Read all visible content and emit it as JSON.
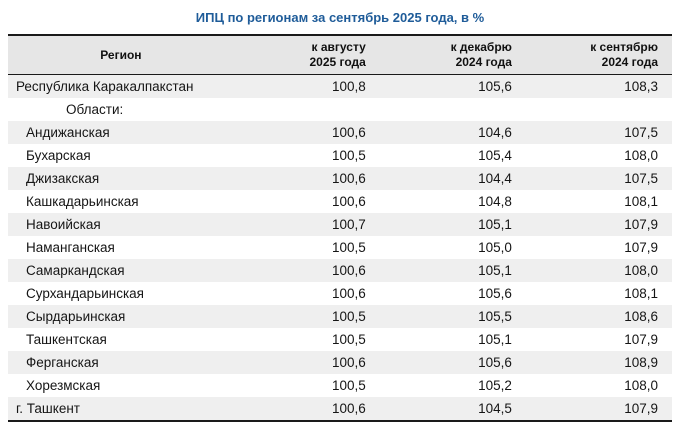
{
  "title": "ИПЦ по регионам за сентябрь 2025 года, в %",
  "colors": {
    "title_text": "#1f5c99",
    "header_bg": "#e6e6e6",
    "stripe_bg": "#efefef",
    "border": "#1a1a1a"
  },
  "table": {
    "columns": [
      {
        "label": "Регион"
      },
      {
        "label": "к августу\n2025 года"
      },
      {
        "label": "к декабрю\n2024 года"
      },
      {
        "label": "к сентябрю\n2024 года"
      }
    ],
    "rows": [
      {
        "region": "Республика Каракалпакстан",
        "values": [
          "100,8",
          "105,6",
          "108,3"
        ],
        "indent": false,
        "subheader": false
      },
      {
        "region": "Области:",
        "values": [
          "",
          "",
          ""
        ],
        "indent": false,
        "subheader": true
      },
      {
        "region": "Андижанская",
        "values": [
          "100,6",
          "104,6",
          "107,5"
        ],
        "indent": true,
        "subheader": false
      },
      {
        "region": "Бухарская",
        "values": [
          "100,5",
          "105,4",
          "108,0"
        ],
        "indent": true,
        "subheader": false
      },
      {
        "region": "Джизакская",
        "values": [
          "100,6",
          "104,4",
          "107,5"
        ],
        "indent": true,
        "subheader": false
      },
      {
        "region": "Кашкадарьинская",
        "values": [
          "100,6",
          "104,8",
          "108,1"
        ],
        "indent": true,
        "subheader": false
      },
      {
        "region": "Навоийская",
        "values": [
          "100,7",
          "105,1",
          "107,9"
        ],
        "indent": true,
        "subheader": false
      },
      {
        "region": "Наманганская",
        "values": [
          "100,5",
          "105,0",
          "107,9"
        ],
        "indent": true,
        "subheader": false
      },
      {
        "region": "Самаркандская",
        "values": [
          "100,6",
          "105,1",
          "108,0"
        ],
        "indent": true,
        "subheader": false
      },
      {
        "region": "Сурхандарьинская",
        "values": [
          "100,6",
          "105,6",
          "108,1"
        ],
        "indent": true,
        "subheader": false
      },
      {
        "region": "Сырдарьинская",
        "values": [
          "100,5",
          "105,5",
          "108,6"
        ],
        "indent": true,
        "subheader": false
      },
      {
        "region": "Ташкентская",
        "values": [
          "100,5",
          "105,1",
          "107,9"
        ],
        "indent": true,
        "subheader": false
      },
      {
        "region": "Ферганская",
        "values": [
          "100,6",
          "105,6",
          "108,9"
        ],
        "indent": true,
        "subheader": false
      },
      {
        "region": "Хорезмская",
        "values": [
          "100,5",
          "105,2",
          "108,0"
        ],
        "indent": true,
        "subheader": false
      },
      {
        "region": "г. Ташкент",
        "values": [
          "100,6",
          "104,5",
          "107,9"
        ],
        "indent": false,
        "subheader": false
      }
    ]
  },
  "chart_data": {
    "type": "table",
    "title": "ИПЦ по регионам за сентябрь 2025 года, в %",
    "columns": [
      "Регион",
      "к августу 2025 года",
      "к декабрю 2024 года",
      "к сентябрю 2024 года"
    ],
    "rows": [
      [
        "Республика Каракалпакстан",
        100.8,
        105.6,
        108.3
      ],
      [
        "Андижанская",
        100.6,
        104.6,
        107.5
      ],
      [
        "Бухарская",
        100.5,
        105.4,
        108.0
      ],
      [
        "Джизакская",
        100.6,
        104.4,
        107.5
      ],
      [
        "Кашкадарьинская",
        100.6,
        104.8,
        108.1
      ],
      [
        "Навоийская",
        100.7,
        105.1,
        107.9
      ],
      [
        "Наманганская",
        100.5,
        105.0,
        107.9
      ],
      [
        "Самаркандская",
        100.6,
        105.1,
        108.0
      ],
      [
        "Сурхандарьинская",
        100.6,
        105.6,
        108.1
      ],
      [
        "Сырдарьинская",
        100.5,
        105.5,
        108.6
      ],
      [
        "Ташкентская",
        100.5,
        105.1,
        107.9
      ],
      [
        "Ферганская",
        100.6,
        105.6,
        108.9
      ],
      [
        "Хорезмская",
        100.5,
        105.2,
        108.0
      ],
      [
        "г. Ташкент",
        100.6,
        104.5,
        107.9
      ]
    ]
  }
}
